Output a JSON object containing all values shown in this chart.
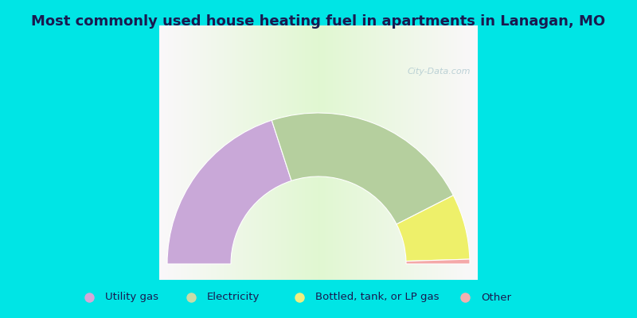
{
  "title": "Most commonly used house heating fuel in apartments in Lanagan, MO",
  "categories": [
    "Utility gas",
    "Electricity",
    "Bottled, tank, or LP gas",
    "Other"
  ],
  "values": [
    40,
    45,
    14,
    1
  ],
  "colors": [
    "#c9a8d8",
    "#b5cf9e",
    "#eef06a",
    "#f4a8a8"
  ],
  "legend_colors": [
    "#d4a8d8",
    "#c8dca8",
    "#f0ef80",
    "#f4b0b0"
  ],
  "background_color": "#00e5e5",
  "title_color": "#1a1a50",
  "legend_text_color": "#1a1a50",
  "figsize": [
    8.0,
    4.0
  ],
  "dpi": 100
}
